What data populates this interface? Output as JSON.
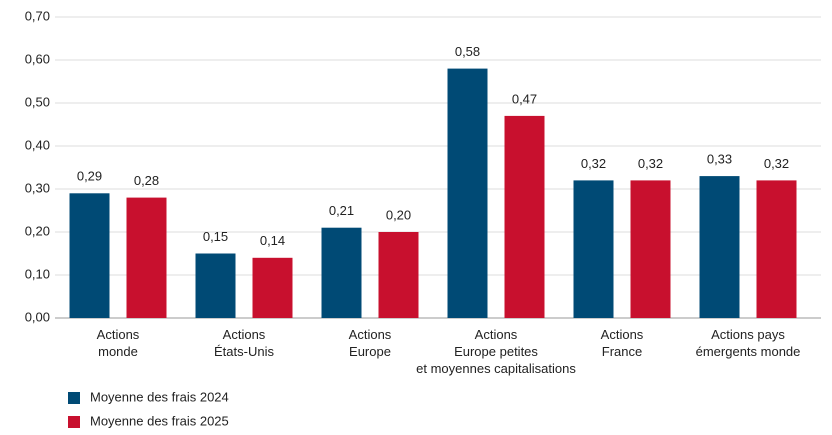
{
  "chart_data": {
    "type": "bar",
    "categories": [
      "Actions\nmonde",
      "Actions\nÉtats-Unis",
      "Actions\nEurope",
      "Actions\nEurope petites\net moyennes capitalisations",
      "Actions\nFrance",
      "Actions pays\némergents monde"
    ],
    "series": [
      {
        "name": "Moyenne des frais 2024",
        "color": "#004a75",
        "values": [
          0.29,
          0.15,
          0.21,
          0.58,
          0.32,
          0.33
        ],
        "value_labels": [
          "0,29",
          "0,15",
          "0,21",
          "0,58",
          "0,32",
          "0,33"
        ]
      },
      {
        "name": "Moyenne des frais 2025",
        "color": "#c8102e",
        "values": [
          0.28,
          0.14,
          0.2,
          0.47,
          0.32,
          0.32
        ],
        "value_labels": [
          "0,28",
          "0,14",
          "0,20",
          "0,47",
          "0,32",
          "0,32"
        ]
      }
    ],
    "ylim": [
      0,
      0.7
    ],
    "yticks": [
      {
        "value": 0,
        "label": "0,00"
      },
      {
        "value": 0.1,
        "label": "0,10"
      },
      {
        "value": 0.2,
        "label": "0,20"
      },
      {
        "value": 0.3,
        "label": "0,30"
      },
      {
        "value": 0.4,
        "label": "0,40"
      },
      {
        "value": 0.5,
        "label": "0,50"
      },
      {
        "value": 0.6,
        "label": "0,60"
      },
      {
        "value": 0.7,
        "label": "0,70"
      }
    ],
    "grid": true,
    "legend": "bottom-left"
  }
}
